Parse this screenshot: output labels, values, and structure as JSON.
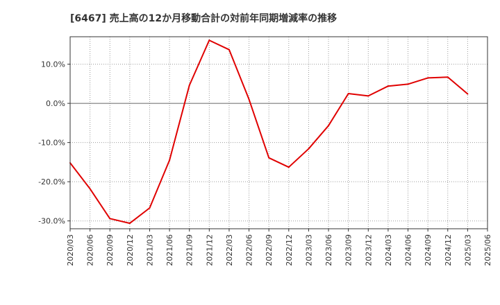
{
  "chart_data": {
    "type": "line",
    "title": "[6467]  売上高の12か月移動合計の対前年同期増減率の推移",
    "xlabel": "",
    "ylabel": "",
    "ylim": [
      -32,
      17
    ],
    "yticks": [
      10,
      0,
      -10,
      -20,
      -30
    ],
    "ytick_labels": [
      "10.0%",
      "0.0%",
      "-10.0%",
      "-20.0%",
      "-30.0%"
    ],
    "categories": [
      "2020/03",
      "2020/06",
      "2020/09",
      "2020/12",
      "2021/03",
      "2021/06",
      "2021/09",
      "2021/12",
      "2022/03",
      "2022/06",
      "2022/09",
      "2022/12",
      "2023/03",
      "2023/06",
      "2023/09",
      "2023/12",
      "2024/03",
      "2024/06",
      "2024/09",
      "2024/12",
      "2025/03",
      "2025/06"
    ],
    "series": [
      {
        "name": "売上高 増減率",
        "color": "#e00000",
        "values": [
          -15.2,
          -21.8,
          -29.4,
          -30.6,
          -26.7,
          -14.5,
          4.6,
          16.1,
          13.7,
          1.0,
          -13.9,
          -16.3,
          -11.6,
          -5.7,
          2.5,
          1.9,
          4.4,
          4.9,
          6.5,
          6.7,
          2.4,
          null
        ]
      }
    ],
    "grid": true,
    "colors": {
      "line": "#e00000",
      "grid": "#999999",
      "axis": "#333333",
      "zero": "#666666"
    }
  }
}
